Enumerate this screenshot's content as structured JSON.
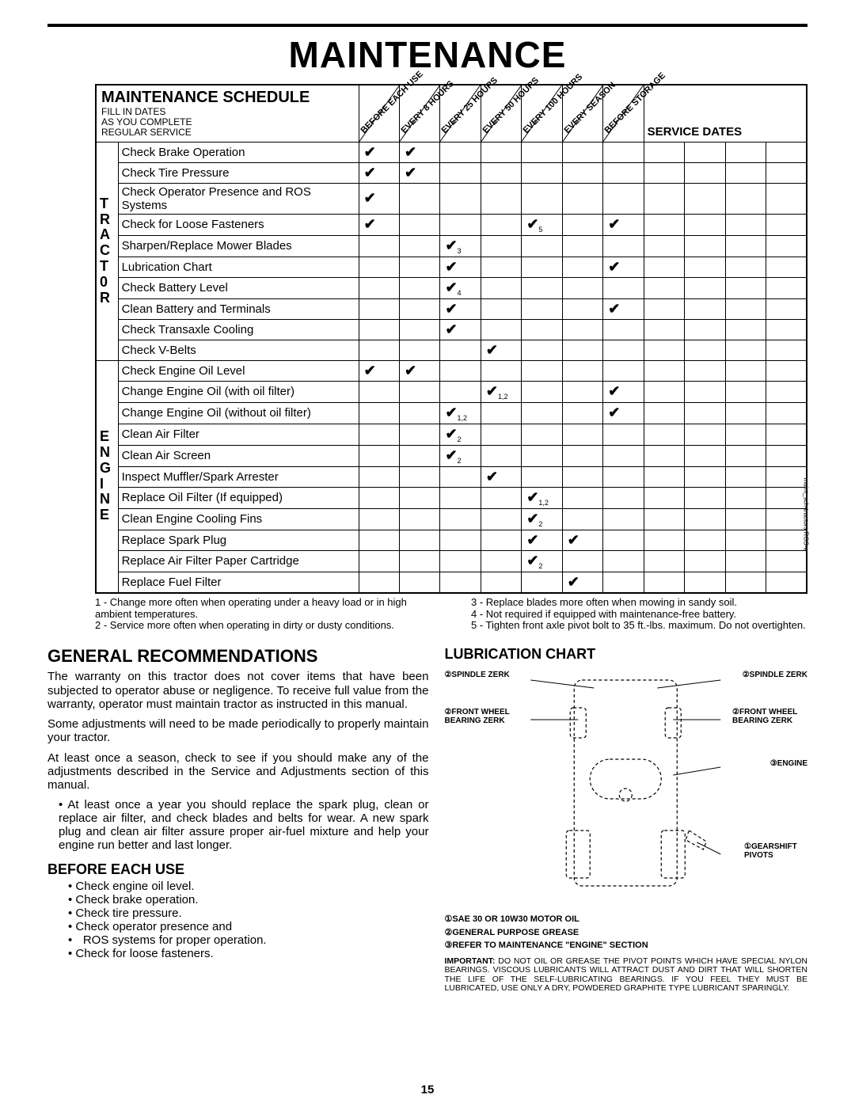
{
  "page": {
    "title": "MAINTENANCE",
    "number": "15",
    "vert_caption": "maint_sch-tractors ROS-e"
  },
  "schedule": {
    "heading": "MAINTENANCE SCHEDULE",
    "sub": "FILL IN DATES\nAS YOU COMPLETE\nREGULAR SERVICE",
    "interval_cols": [
      "BEFORE EACH USE",
      "EVERY 8 HOURS",
      "EVERY 25 HOURS",
      "EVERY 50 HOURS",
      "EVERY 100 HOURS",
      "EVERY SEASON",
      "BEFORE STORAGE"
    ],
    "service_dates_label": "SERVICE DATES",
    "groups": [
      {
        "side": "T\nR\nA\nC\nT\n0\nR",
        "rows": [
          {
            "label": "Check Brake Operation",
            "marks": [
              "✔",
              "✔",
              "",
              "",
              "",
              "",
              ""
            ]
          },
          {
            "label": "Check Tire Pressure",
            "marks": [
              "✔",
              "✔",
              "",
              "",
              "",
              "",
              ""
            ]
          },
          {
            "label": "Check Operator Presence and ROS Systems",
            "marks": [
              "✔",
              "",
              "",
              "",
              "",
              "",
              ""
            ]
          },
          {
            "label": "Check for Loose Fasteners",
            "marks": [
              "✔",
              "",
              "",
              "",
              "✔₅",
              "",
              "✔"
            ]
          },
          {
            "label": "Sharpen/Replace Mower Blades",
            "marks": [
              "",
              "",
              "✔₃",
              "",
              "",
              "",
              ""
            ]
          },
          {
            "label": "Lubrication Chart",
            "marks": [
              "",
              "",
              "✔",
              "",
              "",
              "",
              "✔"
            ]
          },
          {
            "label": "Check Battery Level",
            "marks": [
              "",
              "",
              "✔₄",
              "",
              "",
              "",
              ""
            ]
          },
          {
            "label": "Clean Battery and Terminals",
            "marks": [
              "",
              "",
              "✔",
              "",
              "",
              "",
              "✔"
            ]
          },
          {
            "label": "Check Transaxle Cooling",
            "marks": [
              "",
              "",
              "✔",
              "",
              "",
              "",
              ""
            ]
          },
          {
            "label": "Check V-Belts",
            "marks": [
              "",
              "",
              "",
              "✔",
              "",
              "",
              ""
            ]
          }
        ]
      },
      {
        "side": "E\nN\nG\nI\nN\nE",
        "rows": [
          {
            "label": "Check Engine Oil Level",
            "marks": [
              "✔",
              "✔",
              "",
              "",
              "",
              "",
              ""
            ]
          },
          {
            "label": "Change Engine Oil (with oil filter)",
            "marks": [
              "",
              "",
              "",
              "✔₁,₂",
              "",
              "",
              "✔"
            ]
          },
          {
            "label": "Change Engine Oil (without oil filter)",
            "marks": [
              "",
              "",
              "✔₁,₂",
              "",
              "",
              "",
              "✔"
            ]
          },
          {
            "label": "Clean Air Filter",
            "marks": [
              "",
              "",
              "✔₂",
              "",
              "",
              "",
              ""
            ]
          },
          {
            "label": "Clean Air Screen",
            "marks": [
              "",
              "",
              "✔₂",
              "",
              "",
              "",
              ""
            ]
          },
          {
            "label": "Inspect Muffler/Spark Arrester",
            "marks": [
              "",
              "",
              "",
              "✔",
              "",
              "",
              ""
            ]
          },
          {
            "label": "Replace Oil Filter (If equipped)",
            "marks": [
              "",
              "",
              "",
              "",
              "✔₁,₂",
              "",
              ""
            ]
          },
          {
            "label": "Clean Engine Cooling Fins",
            "marks": [
              "",
              "",
              "",
              "",
              "✔₂",
              "",
              ""
            ]
          },
          {
            "label": "Replace Spark Plug",
            "marks": [
              "",
              "",
              "",
              "",
              "✔",
              "✔",
              ""
            ]
          },
          {
            "label": "Replace Air Filter Paper Cartridge",
            "marks": [
              "",
              "",
              "",
              "",
              "✔₂",
              "",
              ""
            ]
          },
          {
            "label": "Replace Fuel Filter",
            "marks": [
              "",
              "",
              "",
              "",
              "",
              "✔",
              ""
            ]
          }
        ]
      }
    ]
  },
  "footnotes": {
    "left": [
      "1 - Change more often when operating under a heavy load or in high ambient temperatures.",
      "2 - Service more often when operating in dirty or dusty conditions."
    ],
    "right": [
      "3 - Replace blades more often when mowing in sandy soil.",
      "4 - Not required if equipped with maintenance-free battery.",
      "5 - Tighten front axle pivot bolt to 35 ft.-lbs. maximum. Do not overtighten."
    ]
  },
  "general": {
    "heading": "GENERAL RECOMMENDATIONS",
    "p1": "The warranty on this tractor does not cover items that have been subjected to operator abuse or negligence. To receive full value from the warranty, operator must maintain tractor as instructed in this manual.",
    "p2": "Some adjustments will need to be made periodically to properly maintain your tractor.",
    "p3": "At least once a season, check to see if you should make any of the adjustments described in the Service and Adjustments section of this manual.",
    "bullet": "At least once a year you should replace the spark plug, clean or replace air filter, and check blades and belts for wear.  A new spark plug and clean air filter assure proper air-fuel mixture and help your engine run better and last longer.",
    "before_heading": "BEFORE EACH USE",
    "before_items": [
      "Check engine oil level.",
      "Check brake operation.",
      "Check tire pressure.",
      "Check operator presence and",
      "ROS systems for proper operation.",
      "Check for loose fasteners."
    ]
  },
  "lube": {
    "heading": "LUBRICATION CHART",
    "labels": {
      "sz_l": "②SPINDLE ZERK",
      "sz_r": "②SPINDLE ZERK",
      "fw_l": "②FRONT WHEEL BEARING  ZERK",
      "fw_r": "②FRONT WHEEL BEARING  ZERK",
      "engine": "③ENGINE",
      "gear": "①GEARSHIFT PIVOTS"
    },
    "legend": [
      "①SAE 30 OR 10W30 MOTOR OIL",
      "②GENERAL PURPOSE GREASE",
      "③REFER TO MAINTENANCE \"ENGINE\"  SECTION"
    ],
    "important": "IMPORTANT:  DO NOT OIL OR GREASE THE PIVOT POINTS WHICH HAVE SPECIAL NYLON BEARINGS.  VISCOUS LUBRICANTS WILL ATTRACT DUST AND DIRT THAT WILL SHORTEN THE LIFE OF THE SELF-LUBRICATING BEARINGS.  IF YOU FEEL THEY MUST BE LUBRICATED, USE ONLY A DRY, POWDERED GRAPHITE TYPE LUBRICANT SPARINGLY."
  }
}
